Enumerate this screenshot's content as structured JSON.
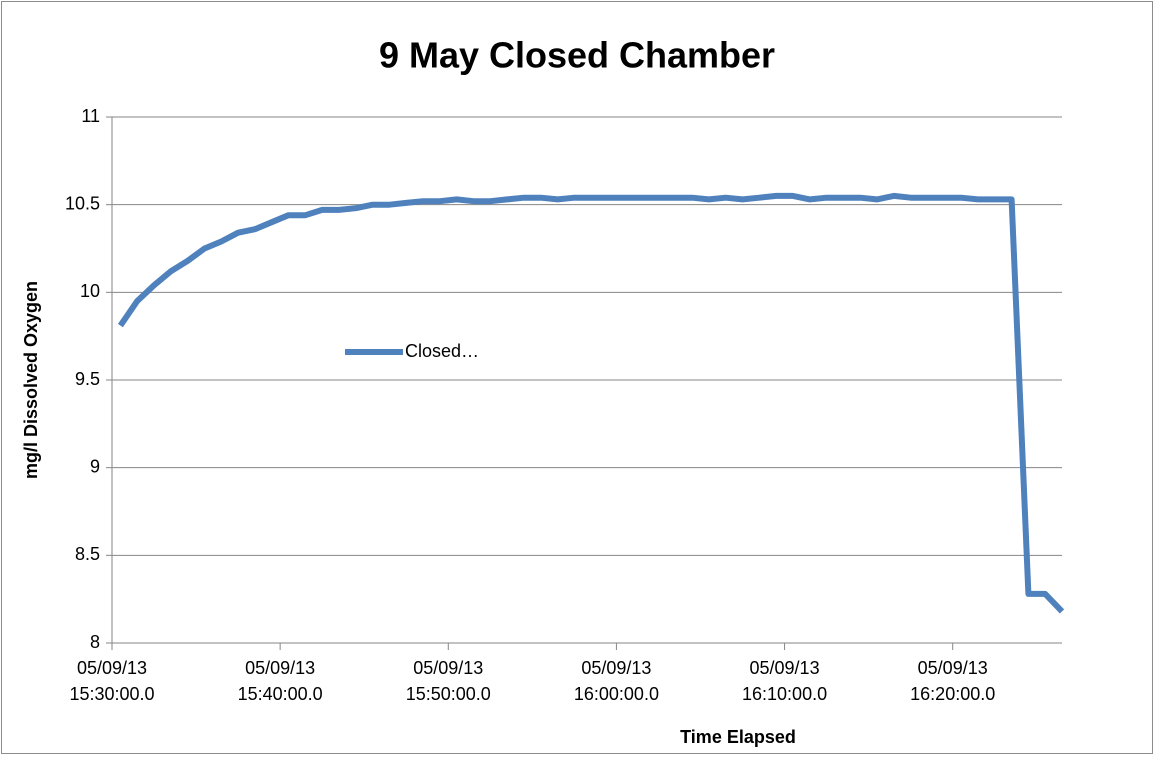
{
  "chart_data": {
    "type": "line",
    "title": "9 May Closed Chamber",
    "x_label": "Time Elapsed",
    "y_label": "mg/l Dissolved  Oxygen",
    "x": [
      "05/09/13 15:30:30.0",
      "05/09/13 15:31:30.0",
      "05/09/13 15:32:30.0",
      "05/09/13 15:33:30.0",
      "05/09/13 15:34:30.0",
      "05/09/13 15:35:30.0",
      "05/09/13 15:36:30.0",
      "05/09/13 15:37:30.0",
      "05/09/13 15:38:30.0",
      "05/09/13 15:39:30.0",
      "05/09/13 15:40:30.0",
      "05/09/13 15:41:30.0",
      "05/09/13 15:42:30.0",
      "05/09/13 15:43:30.0",
      "05/09/13 15:44:30.0",
      "05/09/13 15:45:30.0",
      "05/09/13 15:46:30.0",
      "05/09/13 15:47:30.0",
      "05/09/13 15:48:30.0",
      "05/09/13 15:49:30.0",
      "05/09/13 15:50:30.0",
      "05/09/13 15:51:30.0",
      "05/09/13 15:52:30.0",
      "05/09/13 15:53:30.0",
      "05/09/13 15:54:30.0",
      "05/09/13 15:55:30.0",
      "05/09/13 15:56:30.0",
      "05/09/13 15:57:30.0",
      "05/09/13 15:58:30.0",
      "05/09/13 15:59:30.0",
      "05/09/13 16:00:30.0",
      "05/09/13 16:01:30.0",
      "05/09/13 16:02:30.0",
      "05/09/13 16:03:30.0",
      "05/09/13 16:04:30.0",
      "05/09/13 16:05:30.0",
      "05/09/13 16:06:30.0",
      "05/09/13 16:07:30.0",
      "05/09/13 16:08:30.0",
      "05/09/13 16:09:30.0",
      "05/09/13 16:10:30.0",
      "05/09/13 16:11:30.0",
      "05/09/13 16:12:30.0",
      "05/09/13 16:13:30.0",
      "05/09/13 16:14:30.0",
      "05/09/13 16:15:30.0",
      "05/09/13 16:16:30.0",
      "05/09/13 16:17:30.0",
      "05/09/13 16:18:30.0",
      "05/09/13 16:19:30.0",
      "05/09/13 16:20:30.0",
      "05/09/13 16:21:30.0",
      "05/09/13 16:22:30.0",
      "05/09/13 16:23:30.0",
      "05/09/13 16:24:30.0",
      "05/09/13 16:25:30.0",
      "05/09/13 16:26:30.0"
    ],
    "series": [
      {
        "name": "Closed…",
        "color": "#4f81bd",
        "values": [
          9.81,
          9.95,
          10.04,
          10.12,
          10.18,
          10.25,
          10.29,
          10.34,
          10.36,
          10.4,
          10.44,
          10.44,
          10.47,
          10.47,
          10.48,
          10.5,
          10.5,
          10.51,
          10.52,
          10.52,
          10.53,
          10.52,
          10.52,
          10.53,
          10.54,
          10.54,
          10.53,
          10.54,
          10.54,
          10.54,
          10.54,
          10.54,
          10.54,
          10.54,
          10.54,
          10.53,
          10.54,
          10.53,
          10.54,
          10.55,
          10.55,
          10.53,
          10.54,
          10.54,
          10.54,
          10.53,
          10.55,
          10.54,
          10.54,
          10.54,
          10.54,
          10.53,
          10.53,
          10.53,
          8.28,
          8.28,
          8.18
        ]
      }
    ],
    "xlim": [
      "05/09/13 15:30:00.0",
      "05/09/13 16:26:30.0"
    ],
    "xticks": [
      "05/09/13 15:30:00.0",
      "05/09/13 15:40:00.0",
      "05/09/13 15:50:00.0",
      "05/09/13 16:00:00.0",
      "05/09/13 16:10:00.0",
      "05/09/13 16:20:00.0"
    ],
    "ylim": [
      8,
      11
    ],
    "yticks": [
      8,
      8.5,
      9,
      9.5,
      10,
      10.5,
      11
    ],
    "grid": true,
    "legend": "center"
  }
}
